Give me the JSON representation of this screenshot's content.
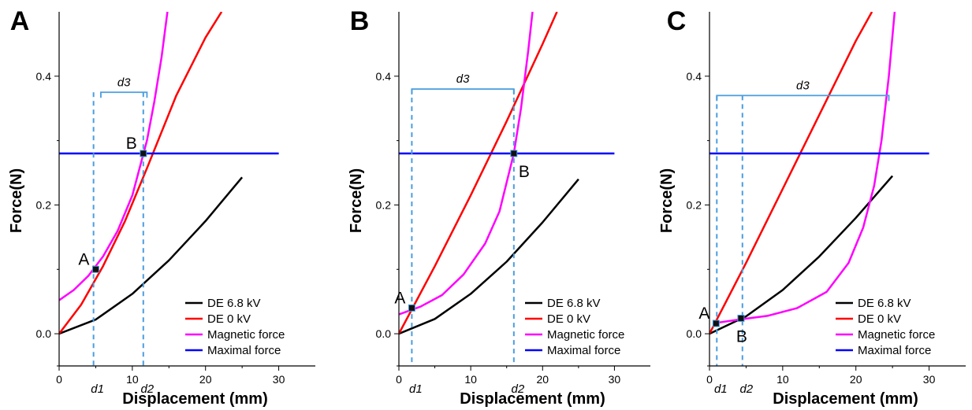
{
  "chart_data": [
    {
      "panel": "A",
      "type": "line",
      "xlabel": "Displacement (mm)",
      "ylabel": "Force(N)",
      "xlim": [
        0,
        35
      ],
      "ylim": [
        -0.05,
        0.5
      ],
      "xticks": [
        {
          "v": 0,
          "label": "0"
        },
        {
          "v": 10,
          "label": "10"
        },
        {
          "v": 20,
          "label": "20"
        },
        {
          "v": 30,
          "label": "30"
        }
      ],
      "yticks": [
        {
          "v": 0.0,
          "label": "0.0"
        },
        {
          "v": 0.2,
          "label": "0.2"
        },
        {
          "v": 0.4,
          "label": "0.4"
        }
      ],
      "series": [
        {
          "name": "DE 6.8 kV",
          "color": "#000000",
          "x": [
            0,
            5,
            10,
            15,
            20,
            25
          ],
          "y": [
            0,
            0.022,
            0.062,
            0.114,
            0.175,
            0.243
          ]
        },
        {
          "name": "DE   0 kV",
          "color": "#ff0000",
          "x": [
            0,
            3,
            6,
            9,
            12,
            16,
            20,
            22.2
          ],
          "y": [
            0,
            0.045,
            0.105,
            0.175,
            0.257,
            0.37,
            0.46,
            0.5
          ]
        },
        {
          "name": "Magnetic force",
          "color": "#ff00ff",
          "x": [
            0,
            2,
            4,
            6,
            8,
            10,
            12,
            13,
            14,
            14.8
          ],
          "y": [
            0.052,
            0.068,
            0.09,
            0.12,
            0.16,
            0.215,
            0.3,
            0.36,
            0.43,
            0.5
          ]
        },
        {
          "name": "Maximal force",
          "color": "#0000ff",
          "x": [
            0,
            30
          ],
          "y": [
            0.28,
            0.28
          ]
        }
      ],
      "points": [
        {
          "label": "A",
          "x": 5,
          "y": 0.1,
          "label_pos": "upper-left"
        },
        {
          "label": "B",
          "x": 11.5,
          "y": 0.28,
          "label_pos": "upper-left"
        }
      ],
      "markers": [
        {
          "label": "d1",
          "x": 4.7
        },
        {
          "label": "d2",
          "x": 11.5
        }
      ],
      "span": {
        "label": "d3",
        "x1": 5.7,
        "x2": 12.0,
        "y": 0.375
      },
      "legend_position": "bottom-right"
    },
    {
      "panel": "B",
      "type": "line",
      "xlabel": "Displacement (mm)",
      "ylabel": "Force(N)",
      "xlim": [
        0,
        35
      ],
      "ylim": [
        -0.05,
        0.5
      ],
      "xticks": [
        {
          "v": 0,
          "label": "0"
        },
        {
          "v": 10,
          "label": "10"
        },
        {
          "v": 20,
          "label": "20"
        },
        {
          "v": 30,
          "label": "30"
        }
      ],
      "yticks": [
        {
          "v": 0.0,
          "label": "0.0"
        },
        {
          "v": 0.2,
          "label": "0.2"
        },
        {
          "v": 0.4,
          "label": "0.4"
        }
      ],
      "series": [
        {
          "name": "DE 6.8 kV",
          "color": "#000000",
          "x": [
            0,
            5,
            10,
            15,
            20,
            25
          ],
          "y": [
            0,
            0.023,
            0.062,
            0.112,
            0.173,
            0.24
          ]
        },
        {
          "name": "DE   0 kV",
          "color": "#ff0000",
          "x": [
            0,
            5,
            10,
            15,
            20,
            22
          ],
          "y": [
            0,
            0.105,
            0.215,
            0.33,
            0.45,
            0.5
          ]
        },
        {
          "name": "Magnetic force",
          "color": "#ff00ff",
          "x": [
            0,
            3,
            6,
            9,
            12,
            14,
            16,
            17,
            18,
            18.6
          ],
          "y": [
            0.03,
            0.042,
            0.06,
            0.092,
            0.14,
            0.19,
            0.28,
            0.35,
            0.44,
            0.5
          ]
        },
        {
          "name": "Maximal force",
          "color": "#0000ff",
          "x": [
            0,
            30
          ],
          "y": [
            0.28,
            0.28
          ]
        }
      ],
      "points": [
        {
          "label": "A",
          "x": 1.8,
          "y": 0.04,
          "label_pos": "upper-left"
        },
        {
          "label": "B",
          "x": 16.0,
          "y": 0.28,
          "label_pos": "lower-right"
        }
      ],
      "markers": [
        {
          "label": "d1",
          "x": 1.8
        },
        {
          "label": "d2",
          "x": 16.0
        }
      ],
      "span": {
        "label": "d3",
        "x1": 1.8,
        "x2": 16.0,
        "y": 0.38
      },
      "legend_position": "bottom-right"
    },
    {
      "panel": "C",
      "type": "line",
      "xlabel": "Displacement (mm)",
      "ylabel": "Force(N)",
      "xlim": [
        0,
        35
      ],
      "ylim": [
        -0.05,
        0.5
      ],
      "xticks": [
        {
          "v": 0,
          "label": "0"
        },
        {
          "v": 10,
          "label": "10"
        },
        {
          "v": 20,
          "label": "20"
        },
        {
          "v": 30,
          "label": "30"
        }
      ],
      "yticks": [
        {
          "v": 0.0,
          "label": "0.0"
        },
        {
          "v": 0.2,
          "label": "0.2"
        },
        {
          "v": 0.4,
          "label": "0.4"
        }
      ],
      "series": [
        {
          "name": "DE 6.8 kV",
          "color": "#000000",
          "x": [
            0,
            5,
            10,
            15,
            20,
            25
          ],
          "y": [
            0,
            0.027,
            0.068,
            0.12,
            0.18,
            0.245
          ]
        },
        {
          "name": "DE   0 kV",
          "color": "#ff0000",
          "x": [
            0,
            5,
            10,
            15,
            20,
            22.2
          ],
          "y": [
            0,
            0.11,
            0.225,
            0.34,
            0.455,
            0.5
          ]
        },
        {
          "name": "Magnetic force",
          "color": "#ff00ff",
          "x": [
            1,
            4,
            8,
            12,
            16,
            19,
            21,
            22.5,
            23.5,
            24.5,
            25.3
          ],
          "y": [
            0.017,
            0.022,
            0.028,
            0.04,
            0.065,
            0.11,
            0.165,
            0.23,
            0.3,
            0.4,
            0.5
          ]
        },
        {
          "name": "Maximal force",
          "color": "#0000ff",
          "x": [
            0,
            30
          ],
          "y": [
            0.28,
            0.28
          ]
        }
      ],
      "points": [
        {
          "label": "A",
          "x": 0.9,
          "y": 0.016,
          "label_pos": "upper-left"
        },
        {
          "label": "B",
          "x": 4.3,
          "y": 0.024,
          "label_pos": "below"
        }
      ],
      "markers": [
        {
          "label": "d1",
          "x": 1.0
        },
        {
          "label": "d2",
          "x": 4.5
        }
      ],
      "span": {
        "label": "d3",
        "x1": 1.0,
        "x2": 24.5,
        "y": 0.37
      },
      "legend_position": "bottom-right"
    }
  ]
}
